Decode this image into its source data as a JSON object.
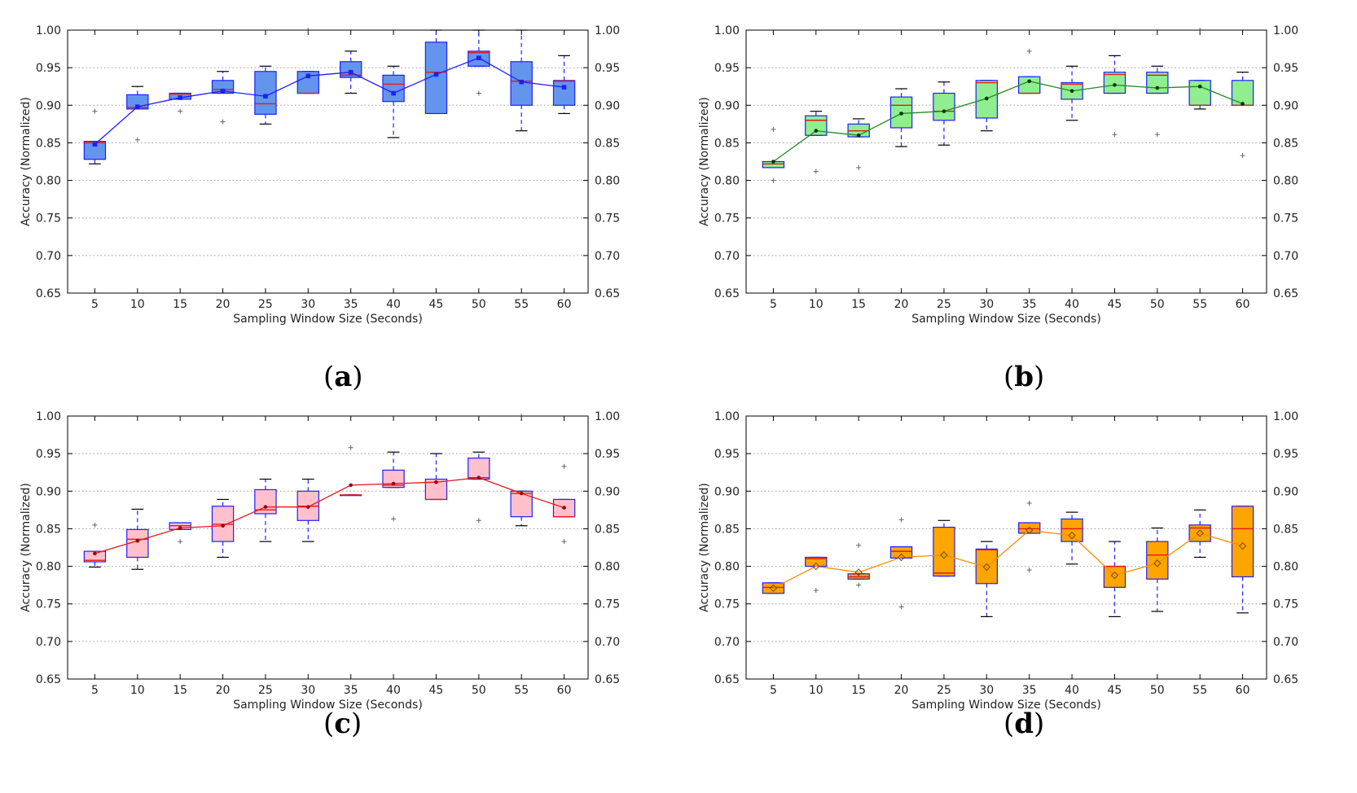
{
  "chart_data": [
    {
      "type": "box",
      "panel": "a",
      "title": "",
      "caption": "(a)",
      "caption_letter": "a",
      "xlabel": "Sampling Window Size (Seconds)",
      "ylabel": "Accuracy (Normalized)",
      "ylim": [
        0.65,
        1.0
      ],
      "yticks": [
        "0.65",
        "0.70",
        "0.75",
        "0.80",
        "0.85",
        "0.90",
        "0.95",
        "1.00"
      ],
      "categories": [
        "5",
        "10",
        "15",
        "20",
        "25",
        "30",
        "35",
        "40",
        "45",
        "50",
        "55",
        "60"
      ],
      "box_color": "#6495ed",
      "median_color": "#e41a1c",
      "line_color": "#1f1fff",
      "marker": "square",
      "boxes": [
        {
          "q1": 0.828,
          "median": 0.85,
          "q3": 0.852,
          "wlo": 0.822,
          "whi": 0.852,
          "mean": 0.848,
          "outliers": [
            0.892
          ]
        },
        {
          "q1": 0.895,
          "median": 0.897,
          "q3": 0.914,
          "wlo": 0.895,
          "whi": 0.925,
          "mean": 0.898,
          "outliers": [
            0.854
          ]
        },
        {
          "q1": 0.908,
          "median": 0.915,
          "q3": 0.916,
          "wlo": 0.908,
          "whi": 0.916,
          "mean": 0.91,
          "outliers": [
            0.892
          ]
        },
        {
          "q1": 0.916,
          "median": 0.921,
          "q3": 0.933,
          "wlo": 0.916,
          "whi": 0.945,
          "mean": 0.919,
          "outliers": [
            0.878
          ]
        },
        {
          "q1": 0.888,
          "median": 0.902,
          "q3": 0.945,
          "wlo": 0.875,
          "whi": 0.952,
          "mean": 0.912,
          "outliers": []
        },
        {
          "q1": 0.916,
          "median": 0.916,
          "q3": 0.945,
          "wlo": 0.916,
          "whi": 0.945,
          "mean": 0.939,
          "outliers": [
            1.0
          ]
        },
        {
          "q1": 0.937,
          "median": 0.94,
          "q3": 0.958,
          "wlo": 0.916,
          "whi": 0.972,
          "mean": 0.944,
          "outliers": []
        },
        {
          "q1": 0.905,
          "median": 0.928,
          "q3": 0.94,
          "wlo": 0.857,
          "whi": 0.952,
          "mean": 0.916,
          "outliers": []
        },
        {
          "q1": 0.889,
          "median": 0.944,
          "q3": 0.984,
          "wlo": 0.889,
          "whi": 1.0,
          "mean": 0.941,
          "outliers": []
        },
        {
          "q1": 0.952,
          "median": 0.97,
          "q3": 0.972,
          "wlo": 0.952,
          "whi": 1.0,
          "mean": 0.963,
          "outliers": [
            0.916
          ]
        },
        {
          "q1": 0.9,
          "median": 0.932,
          "q3": 0.958,
          "wlo": 0.866,
          "whi": 1.0,
          "mean": 0.931,
          "outliers": []
        },
        {
          "q1": 0.9,
          "median": 0.932,
          "q3": 0.933,
          "wlo": 0.889,
          "whi": 0.966,
          "mean": 0.924,
          "outliers": []
        }
      ]
    },
    {
      "type": "box",
      "panel": "b",
      "title": "",
      "caption": "(b)",
      "caption_letter": "b",
      "xlabel": "Sampling Window Size (Seconds)",
      "ylabel": "Accuracy (Normalized)",
      "ylim": [
        0.65,
        1.0
      ],
      "yticks": [
        "0.65",
        "0.70",
        "0.75",
        "0.80",
        "0.85",
        "0.90",
        "0.95",
        "1.00"
      ],
      "categories": [
        "5",
        "10",
        "15",
        "20",
        "25",
        "30",
        "35",
        "40",
        "45",
        "50",
        "55",
        "60"
      ],
      "box_color": "#90ee90",
      "median_color": "#e41a1c",
      "line_color": "#228b22",
      "marker": "dot",
      "boxes": [
        {
          "q1": 0.817,
          "median": 0.822,
          "q3": 0.825,
          "wlo": 0.817,
          "whi": 0.825,
          "mean": 0.825,
          "outliers": [
            0.868,
            0.8
          ]
        },
        {
          "q1": 0.86,
          "median": 0.88,
          "q3": 0.886,
          "wlo": 0.86,
          "whi": 0.892,
          "mean": 0.866,
          "outliers": [
            0.812
          ]
        },
        {
          "q1": 0.858,
          "median": 0.866,
          "q3": 0.875,
          "wlo": 0.858,
          "whi": 0.882,
          "mean": 0.86,
          "outliers": [
            0.817
          ]
        },
        {
          "q1": 0.87,
          "median": 0.9,
          "q3": 0.911,
          "wlo": 0.845,
          "whi": 0.922,
          "mean": 0.889,
          "outliers": []
        },
        {
          "q1": 0.88,
          "median": 0.892,
          "q3": 0.916,
          "wlo": 0.847,
          "whi": 0.931,
          "mean": 0.892,
          "outliers": []
        },
        {
          "q1": 0.883,
          "median": 0.93,
          "q3": 0.933,
          "wlo": 0.866,
          "whi": 0.933,
          "mean": 0.909,
          "outliers": []
        },
        {
          "q1": 0.916,
          "median": 0.916,
          "q3": 0.938,
          "wlo": 0.916,
          "whi": 0.938,
          "mean": 0.932,
          "outliers": [
            0.972
          ]
        },
        {
          "q1": 0.908,
          "median": 0.928,
          "q3": 0.93,
          "wlo": 0.88,
          "whi": 0.952,
          "mean": 0.919,
          "outliers": []
        },
        {
          "q1": 0.916,
          "median": 0.941,
          "q3": 0.944,
          "wlo": 0.916,
          "whi": 0.966,
          "mean": 0.927,
          "outliers": [
            0.861
          ]
        },
        {
          "q1": 0.916,
          "median": 0.94,
          "q3": 0.944,
          "wlo": 0.916,
          "whi": 0.952,
          "mean": 0.923,
          "outliers": [
            0.861
          ]
        },
        {
          "q1": 0.9,
          "median": 0.9,
          "q3": 0.933,
          "wlo": 0.895,
          "whi": 0.933,
          "mean": 0.925,
          "outliers": [
            1.0
          ]
        },
        {
          "q1": 0.9,
          "median": 0.9,
          "q3": 0.933,
          "wlo": 0.9,
          "whi": 0.944,
          "mean": 0.902,
          "outliers": [
            0.833
          ]
        }
      ]
    },
    {
      "type": "box",
      "panel": "c",
      "title": "",
      "caption": "(c)",
      "caption_letter": "c",
      "xlabel": "Sampling Window Size (Seconds)",
      "ylabel": "Accuracy (Normalized)",
      "ylim": [
        0.65,
        1.0
      ],
      "yticks": [
        "0.65",
        "0.70",
        "0.75",
        "0.80",
        "0.85",
        "0.90",
        "0.95",
        "1.00"
      ],
      "categories": [
        "5",
        "10",
        "15",
        "20",
        "25",
        "30",
        "35",
        "40",
        "45",
        "50",
        "55",
        "60"
      ],
      "box_color": "#ffc0cb",
      "median_color": "#e41a1c",
      "line_color": "#e41a1c",
      "marker": "dot",
      "boxes": [
        {
          "q1": 0.806,
          "median": 0.808,
          "q3": 0.82,
          "wlo": 0.799,
          "whi": 0.82,
          "mean": 0.817,
          "outliers": [
            0.855
          ]
        },
        {
          "q1": 0.812,
          "median": 0.836,
          "q3": 0.849,
          "wlo": 0.796,
          "whi": 0.876,
          "mean": 0.834,
          "outliers": []
        },
        {
          "q1": 0.849,
          "median": 0.854,
          "q3": 0.858,
          "wlo": 0.849,
          "whi": 0.858,
          "mean": 0.851,
          "outliers": [
            0.833
          ]
        },
        {
          "q1": 0.833,
          "median": 0.856,
          "q3": 0.88,
          "wlo": 0.812,
          "whi": 0.889,
          "mean": 0.854,
          "outliers": []
        },
        {
          "q1": 0.87,
          "median": 0.875,
          "q3": 0.902,
          "wlo": 0.833,
          "whi": 0.916,
          "mean": 0.879,
          "outliers": []
        },
        {
          "q1": 0.861,
          "median": 0.88,
          "q3": 0.9,
          "wlo": 0.833,
          "whi": 0.916,
          "mean": 0.879,
          "outliers": []
        },
        {
          "q1": 0.895,
          "median": 0.895,
          "q3": 0.895,
          "wlo": 0.895,
          "whi": 0.895,
          "mean": 0.908,
          "outliers": [
            0.958
          ]
        },
        {
          "q1": 0.905,
          "median": 0.908,
          "q3": 0.928,
          "wlo": 0.905,
          "whi": 0.952,
          "mean": 0.91,
          "outliers": [
            0.863
          ]
        },
        {
          "q1": 0.889,
          "median": 0.889,
          "q3": 0.916,
          "wlo": 0.889,
          "whi": 0.95,
          "mean": 0.912,
          "outliers": []
        },
        {
          "q1": 0.916,
          "median": 0.918,
          "q3": 0.944,
          "wlo": 0.916,
          "whi": 0.952,
          "mean": 0.918,
          "outliers": [
            0.861
          ]
        },
        {
          "q1": 0.866,
          "median": 0.897,
          "q3": 0.9,
          "wlo": 0.854,
          "whi": 0.9,
          "mean": 0.897,
          "outliers": [
            1.0
          ]
        },
        {
          "q1": 0.866,
          "median": 0.866,
          "q3": 0.889,
          "wlo": 0.866,
          "whi": 0.889,
          "mean": 0.878,
          "outliers": [
            0.933,
            0.833
          ]
        }
      ]
    },
    {
      "type": "box",
      "panel": "d",
      "title": "",
      "caption": "(d)",
      "caption_letter": "d",
      "xlabel": "Sampling Window Size (Seconds)",
      "ylabel": "Accuracy (Normalized)",
      "ylim": [
        0.65,
        1.0
      ],
      "yticks": [
        "0.65",
        "0.70",
        "0.75",
        "0.80",
        "0.85",
        "0.90",
        "0.95",
        "1.00"
      ],
      "categories": [
        "5",
        "10",
        "15",
        "20",
        "25",
        "30",
        "35",
        "40",
        "45",
        "50",
        "55",
        "60"
      ],
      "box_color": "#ffa500",
      "median_color": "#e41a1c",
      "line_color": "#ff8c00",
      "marker": "diamond",
      "boxes": [
        {
          "q1": 0.764,
          "median": 0.772,
          "q3": 0.778,
          "wlo": 0.764,
          "whi": 0.778,
          "mean": 0.771,
          "outliers": []
        },
        {
          "q1": 0.8,
          "median": 0.81,
          "q3": 0.812,
          "wlo": 0.8,
          "whi": 0.812,
          "mean": 0.8,
          "outliers": [
            0.768
          ]
        },
        {
          "q1": 0.783,
          "median": 0.786,
          "q3": 0.79,
          "wlo": 0.783,
          "whi": 0.79,
          "mean": 0.792,
          "outliers": [
            0.828,
            0.775
          ]
        },
        {
          "q1": 0.811,
          "median": 0.82,
          "q3": 0.826,
          "wlo": 0.811,
          "whi": 0.826,
          "mean": 0.812,
          "outliers": [
            0.862,
            0.746
          ]
        },
        {
          "q1": 0.787,
          "median": 0.791,
          "q3": 0.852,
          "wlo": 0.787,
          "whi": 0.861,
          "mean": 0.815,
          "outliers": []
        },
        {
          "q1": 0.777,
          "median": 0.822,
          "q3": 0.823,
          "wlo": 0.733,
          "whi": 0.833,
          "mean": 0.799,
          "outliers": []
        },
        {
          "q1": 0.844,
          "median": 0.85,
          "q3": 0.858,
          "wlo": 0.844,
          "whi": 0.858,
          "mean": 0.848,
          "outliers": [
            0.884,
            0.795
          ]
        },
        {
          "q1": 0.833,
          "median": 0.85,
          "q3": 0.863,
          "wlo": 0.803,
          "whi": 0.872,
          "mean": 0.841,
          "outliers": []
        },
        {
          "q1": 0.772,
          "median": 0.8,
          "q3": 0.8,
          "wlo": 0.733,
          "whi": 0.833,
          "mean": 0.788,
          "outliers": []
        },
        {
          "q1": 0.783,
          "median": 0.815,
          "q3": 0.833,
          "wlo": 0.74,
          "whi": 0.851,
          "mean": 0.804,
          "outliers": []
        },
        {
          "q1": 0.833,
          "median": 0.851,
          "q3": 0.855,
          "wlo": 0.812,
          "whi": 0.875,
          "mean": 0.844,
          "outliers": []
        },
        {
          "q1": 0.786,
          "median": 0.85,
          "q3": 0.88,
          "wlo": 0.738,
          "whi": 0.88,
          "mean": 0.827,
          "outliers": []
        }
      ]
    }
  ]
}
